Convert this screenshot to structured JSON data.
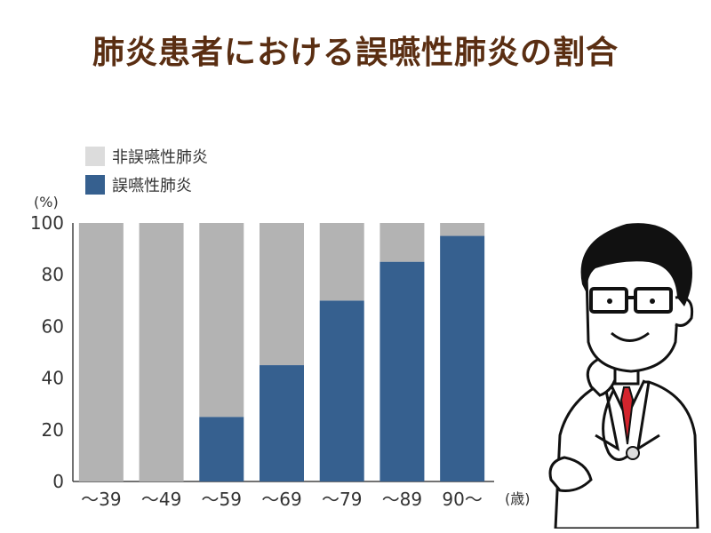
{
  "page_title": "肺炎患者における誤嚥性肺炎の割合",
  "chart_data": {
    "type": "bar",
    "stacked": true,
    "categories": [
      "〜39",
      "〜49",
      "〜59",
      "〜69",
      "〜79",
      "〜89",
      "90〜"
    ],
    "series": [
      {
        "name": "誤嚥性肺炎",
        "values": [
          0,
          0,
          25,
          45,
          70,
          85,
          95
        ],
        "color": "#36608f"
      },
      {
        "name": "非誤嚥性肺炎",
        "values": [
          100,
          100,
          75,
          55,
          30,
          15,
          5
        ],
        "color": "#b3b3b3"
      }
    ],
    "legend_order": [
      "非誤嚥性肺炎",
      "誤嚥性肺炎"
    ],
    "legend_colors": {
      "非誤嚥性肺炎": "#dcdcdc",
      "誤嚥性肺炎": "#36608f"
    },
    "ylim": [
      0,
      100
    ],
    "yticks": [
      0,
      20,
      40,
      60,
      80,
      100
    ],
    "ylabel_unit": "(%)",
    "xlabel_unit": "(歳)",
    "legend_position": "top-left"
  }
}
